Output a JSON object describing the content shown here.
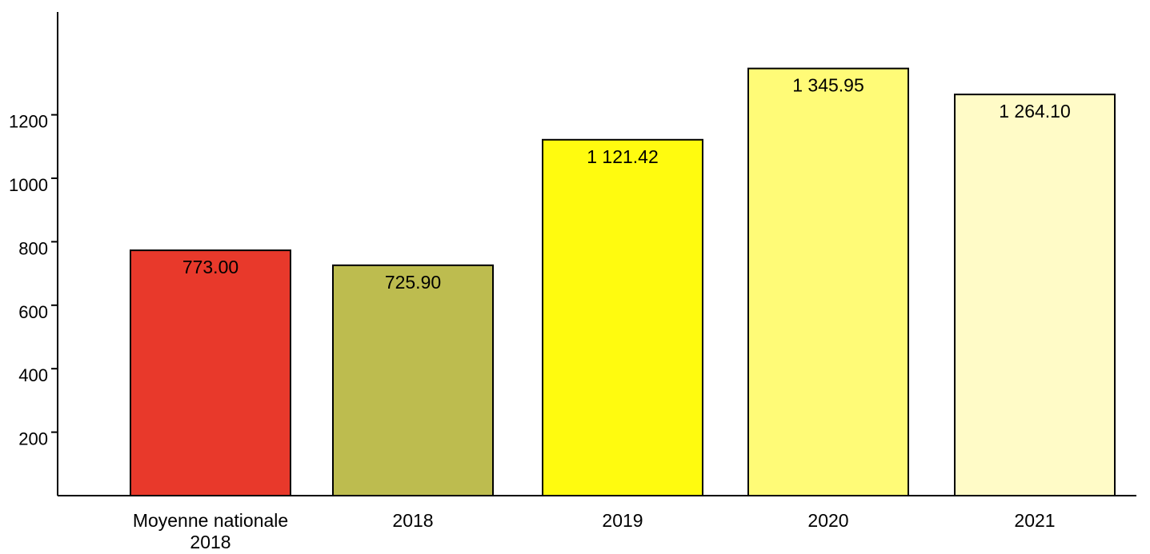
{
  "chart_data": {
    "type": "bar",
    "title": "",
    "xlabel": "",
    "ylabel": "",
    "categories": [
      [
        "Moyenne nationale",
        "2018"
      ],
      [
        "2018"
      ],
      [
        "2019"
      ],
      [
        "2020"
      ],
      [
        "2021"
      ]
    ],
    "values": [
      773.0,
      725.9,
      1121.42,
      1345.95,
      1264.1
    ],
    "value_labels": [
      "773.00",
      "725.90",
      "1 121.42",
      "1 345.95",
      "1 264.10"
    ],
    "colors": [
      "#e8392b",
      "#bdbc4f",
      "#fffb0f",
      "#fffb77",
      "#fffbc7"
    ],
    "ylim": [
      0,
      1530
    ],
    "yticks": [
      200,
      400,
      600,
      800,
      1000,
      1200
    ],
    "grid": false,
    "legend": "none"
  }
}
